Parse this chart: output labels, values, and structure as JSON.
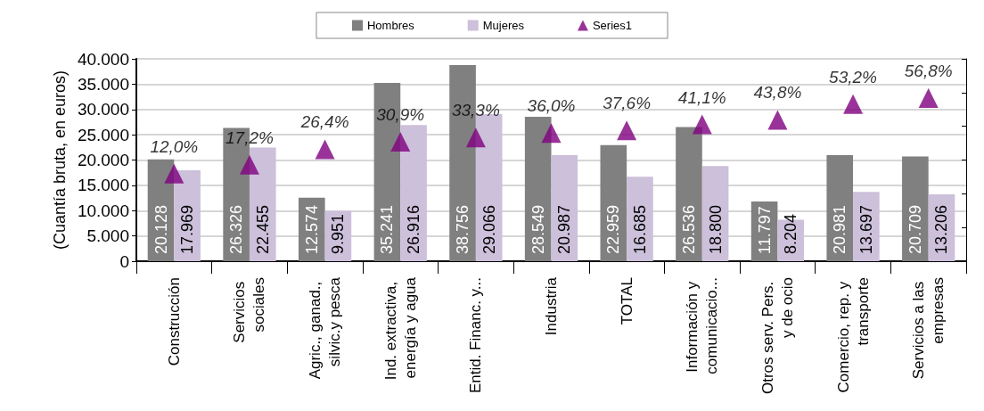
{
  "chart_data": {
    "type": "bar",
    "ylabel": "(Cuantía bruta, en euros)",
    "categories": [
      "Construcción",
      "Servicios sociales",
      "Agric., ganad., silvic.y pesca",
      "Ind. extractiva, energía y agua",
      "Entid. Financ. y...",
      "Industria",
      "TOTAL",
      "Información y comunicacio...",
      "Otros serv. Pers. y de ocio",
      "Comercio, rep. y transporte",
      "Servicios a las empresas"
    ],
    "series": [
      {
        "name": "Hombres",
        "color": "#808080",
        "values": [
          20128,
          26326,
          12574,
          35241,
          38756,
          28549,
          22959,
          26536,
          11797,
          20981,
          20709
        ],
        "value_labels": [
          "20.128",
          "26.326",
          "12.574",
          "35.241",
          "38.756",
          "28.549",
          "22.959",
          "26.536",
          "11.797",
          "20.981",
          "20.709"
        ]
      },
      {
        "name": "Mujeres",
        "color": "#ccc0da",
        "values": [
          17969,
          22455,
          9951,
          26916,
          29066,
          20987,
          16685,
          18800,
          8204,
          13697,
          13206
        ],
        "value_labels": [
          "17.969",
          "22.455",
          "9.951",
          "26.916",
          "29.066",
          "20.987",
          "16.685",
          "18.800",
          "8.204",
          "13.697",
          "13.206"
        ]
      },
      {
        "name": "Series1",
        "type": "scatter",
        "axis": "y2",
        "color": "#800080",
        "values": [
          12.0,
          17.2,
          26.4,
          30.9,
          33.3,
          36.0,
          37.6,
          41.1,
          43.8,
          53.2,
          56.8
        ],
        "value_labels": [
          "12,0%",
          "17,2%",
          "26,4%",
          "30,9%",
          "33,3%",
          "36,0%",
          "37,6%",
          "41,1%",
          "43,8%",
          "53,2%",
          "56,8%"
        ]
      }
    ],
    "ylim": [
      0,
      40000
    ],
    "yticks": [
      {
        "value": 0,
        "label": "0"
      },
      {
        "value": 5000,
        "label": "5.000"
      },
      {
        "value": 10000,
        "label": "10.000"
      },
      {
        "value": 15000,
        "label": "15.000"
      },
      {
        "value": 20000,
        "label": "20.000"
      },
      {
        "value": 25000,
        "label": "25.000"
      },
      {
        "value": 30000,
        "label": "30.000"
      },
      {
        "value": 35000,
        "label": "35.000"
      },
      {
        "value": 40000,
        "label": "40.000"
      }
    ],
    "y2lim": [
      -40,
      80
    ],
    "y2ticks": [
      {
        "value": -40,
        "label": null
      },
      {
        "value": -20,
        "label": null
      },
      {
        "value": 0,
        "label": null
      },
      {
        "value": 20,
        "label": null
      },
      {
        "value": 40,
        "label": null
      },
      {
        "value": 60,
        "label": null
      },
      {
        "value": 80,
        "label": null
      }
    ],
    "grid": "y",
    "legend": "top",
    "marker": "triangle"
  }
}
